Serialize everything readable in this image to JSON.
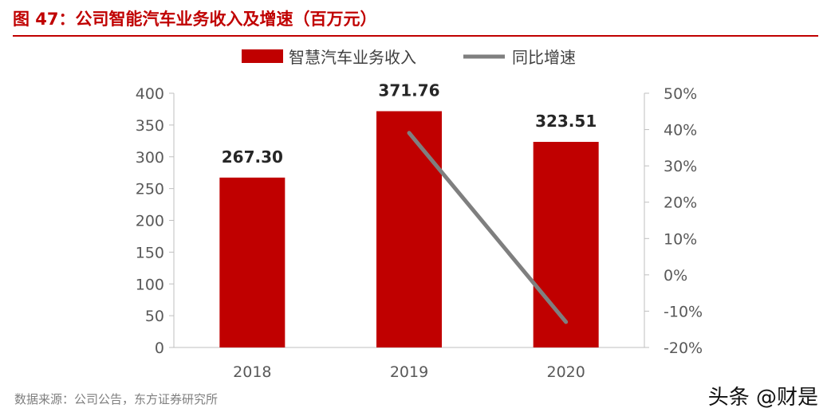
{
  "title": "图 47：公司智能汽车业务收入及增速（百万元）",
  "source": "数据来源：公司公告，东方证券研究所",
  "watermark": "头条 @财是",
  "colors": {
    "bar": "#c00000",
    "line": "#7f7f7f",
    "title": "#c00000",
    "axis": "#595959"
  },
  "chart_data": {
    "type": "bar",
    "categories": [
      "2018",
      "2019",
      "2020"
    ],
    "series": [
      {
        "name": "智慧汽车业务收入",
        "type": "bar",
        "axis": "left",
        "values": [
          267.3,
          371.76,
          323.51
        ],
        "labels": [
          "267.30",
          "371.76",
          "323.51"
        ]
      },
      {
        "name": "同比增速",
        "type": "line",
        "axis": "right",
        "values": [
          null,
          39.08,
          -12.98
        ]
      }
    ],
    "left_axis": {
      "ylim": [
        0,
        400
      ],
      "ticks": [
        0,
        50,
        100,
        150,
        200,
        250,
        300,
        350,
        400
      ],
      "tick_labels": [
        "0",
        "50",
        "100",
        "150",
        "200",
        "250",
        "300",
        "350",
        "400"
      ]
    },
    "right_axis": {
      "ylim": [
        -20,
        50
      ],
      "ticks": [
        -20,
        -10,
        0,
        10,
        20,
        30,
        40,
        50
      ],
      "tick_labels": [
        "-20%",
        "-10%",
        "0%",
        "10%",
        "20%",
        "30%",
        "40%",
        "50%"
      ]
    },
    "legend": "top-center",
    "grid": false
  }
}
